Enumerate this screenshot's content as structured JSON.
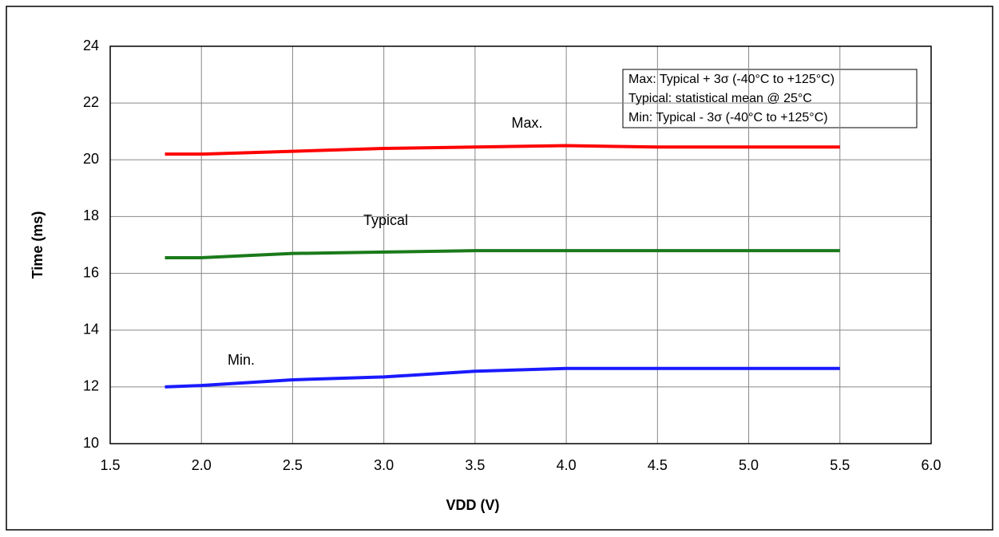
{
  "chart_data": {
    "type": "line",
    "x": [
      1.8,
      2.0,
      2.5,
      3.0,
      3.5,
      4.0,
      4.5,
      5.0,
      5.5
    ],
    "series": [
      {
        "name": "Max.",
        "color": "#ff0000",
        "values": [
          20.2,
          20.2,
          20.3,
          20.4,
          20.45,
          20.5,
          20.45,
          20.45,
          20.45
        ]
      },
      {
        "name": "Typical",
        "color": "#1a7a1a",
        "values": [
          16.55,
          16.55,
          16.7,
          16.75,
          16.8,
          16.8,
          16.8,
          16.8,
          16.8
        ]
      },
      {
        "name": "Min.",
        "color": "#1a1aff",
        "values": [
          12.0,
          12.05,
          12.25,
          12.35,
          12.55,
          12.65,
          12.65,
          12.65,
          12.65
        ]
      }
    ],
    "x_label": "VDD (V)",
    "y_label": "Time (ms)",
    "xlim": [
      1.5,
      6.0
    ],
    "ylim": [
      10,
      24
    ],
    "xticks": [
      1.5,
      {
        "value": 2,
        "label": "2.0"
      },
      2.5,
      {
        "value": 3,
        "label": "3.0"
      },
      3.5,
      {
        "value": 4,
        "label": "4.0"
      },
      4.5,
      {
        "value": 5,
        "label": "5.0"
      },
      5.5,
      {
        "value": 6,
        "label": "6.0"
      }
    ],
    "yticks": [
      10,
      12,
      14,
      16,
      18,
      20,
      22,
      24
    ],
    "grid": true,
    "notes": [
      "Max: Typical + 3σ (-40°C to +125°C)",
      "Typical: statistical mean @ 25°C",
      "Min: Typical - 3σ (-40°C to +125°C)"
    ]
  }
}
